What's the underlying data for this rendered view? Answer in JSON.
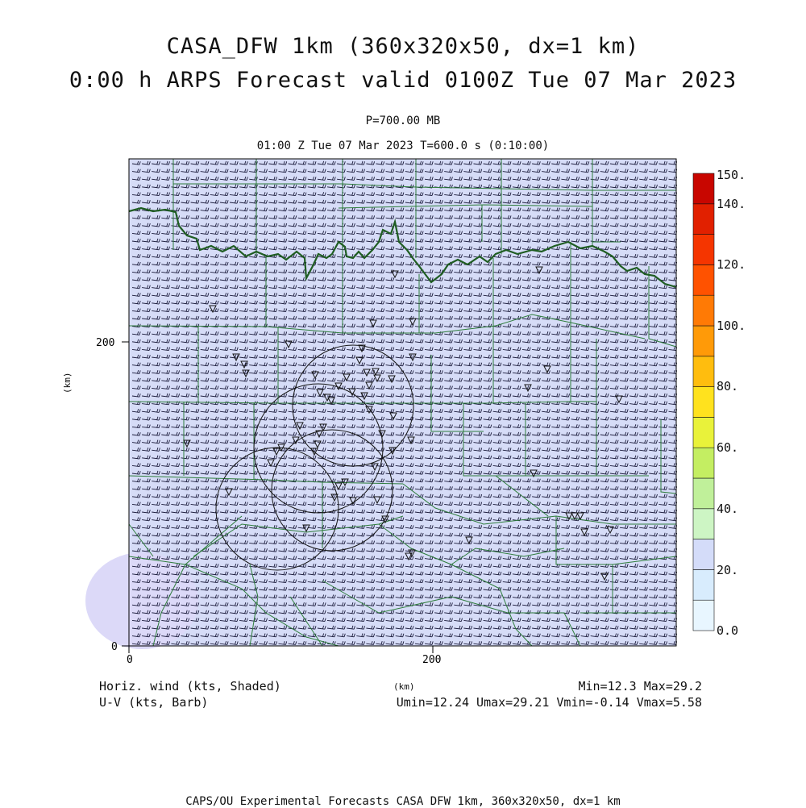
{
  "title_line1": "CASA_DFW 1km (360x320x50, dx=1 km)",
  "title_line2": "0:00 h ARPS Forecast valid 0100Z Tue 07 Mar 2023",
  "pressure_level": "P=700.00 MB",
  "subtitle": "01:00 Z Tue 07 Mar 2023    T=600.0 s (0:10:00)",
  "axes": {
    "x_unit": "(km)",
    "y_unit": "(km)",
    "x_ticks": [
      "0",
      "200"
    ],
    "y_ticks": [
      "0",
      "200"
    ],
    "x_range_km": [
      0,
      360
    ],
    "y_range_km": [
      0,
      320
    ]
  },
  "colorbar": {
    "labels": [
      "150.",
      "140.",
      "120.",
      "100.",
      "80.",
      "60.",
      "40.",
      "20.",
      "0.0"
    ],
    "levels": [
      0,
      10,
      20,
      30,
      40,
      50,
      60,
      70,
      80,
      90,
      100,
      110,
      120,
      130,
      140,
      150
    ],
    "colors": [
      "#e8f6ff",
      "#d8ecfd",
      "#d4dcf9",
      "#cdf5c4",
      "#c0f09a",
      "#c4ee62",
      "#e9f23a",
      "#ffe21e",
      "#ffbd0e",
      "#ff9a08",
      "#ff7a05",
      "#ff5200",
      "#f53500",
      "#e12000",
      "#c80600"
    ]
  },
  "field": {
    "name": "Horiz. wind (kts, Shaded)",
    "barb_name": "U-V (kts, Barb)",
    "min_max": "Min=12.3 Max=29.2",
    "uv_range": "Umin=12.24 Umax=29.21 Vmin=-0.14 Vmax=5.58",
    "background_color": "#d6dcf7",
    "low_wind_color": "#dcdcf8"
  },
  "footer": "CAPS/OU Experimental Forecasts  CASA DFW 1km, 360x320x50, dx=1 km"
}
